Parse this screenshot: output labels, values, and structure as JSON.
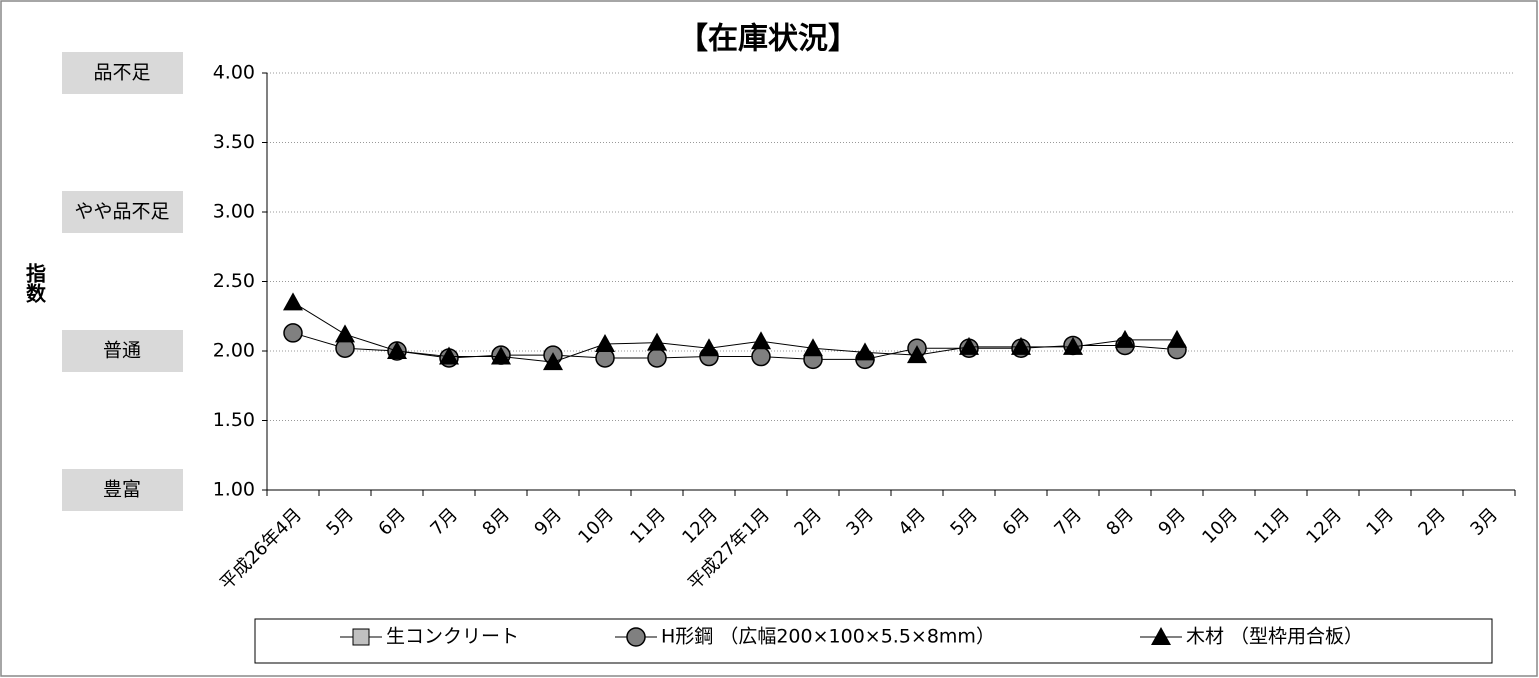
{
  "chart_data": {
    "type": "line",
    "title": "【在庫状況】",
    "y_label": "指数",
    "categories": [
      "平成26年4月",
      "5月",
      "6月",
      "7月",
      "8月",
      "9月",
      "10月",
      "11月",
      "12月",
      "平成27年1月",
      "2月",
      "3月",
      "4月",
      "5月",
      "6月",
      "7月",
      "8月",
      "9月",
      "10月",
      "11月",
      "12月",
      "1月",
      "2月",
      "3月"
    ],
    "series": [
      {
        "name": "生コンクリート",
        "color": "#c0c0c0",
        "marker": "square",
        "values": [
          null,
          null,
          null,
          null,
          null,
          null,
          null,
          null,
          null,
          null,
          null,
          null,
          null,
          null,
          null,
          null,
          null,
          null,
          null,
          null,
          null,
          null,
          null,
          null
        ]
      },
      {
        "name": "H形鋼 （広幅200×100×5.5×8mm）",
        "color": "#808080",
        "marker": "circle",
        "values": [
          2.13,
          2.02,
          2.0,
          1.95,
          1.97,
          1.97,
          1.95,
          1.95,
          1.96,
          1.96,
          1.94,
          1.94,
          2.02,
          2.02,
          2.02,
          2.04,
          2.04,
          2.01,
          null,
          null,
          null,
          null,
          null,
          null
        ]
      },
      {
        "name": "木材 （型枠用合板）",
        "color": "#000000",
        "marker": "triangle",
        "values": [
          2.35,
          2.12,
          2.0,
          1.96,
          1.96,
          1.92,
          2.05,
          2.06,
          2.02,
          2.07,
          2.02,
          1.99,
          1.97,
          2.03,
          2.03,
          2.03,
          2.08,
          2.08,
          null,
          null,
          null,
          null,
          null,
          null
        ]
      }
    ],
    "ylim": [
      1.0,
      4.0
    ],
    "yticks": [
      {
        "value": 1.0,
        "label": "1.00"
      },
      {
        "value": 1.5,
        "label": "1.50"
      },
      {
        "value": 2.0,
        "label": "2.00"
      },
      {
        "value": 2.5,
        "label": "2.50"
      },
      {
        "value": 3.0,
        "label": "3.00"
      },
      {
        "value": 3.5,
        "label": "3.50"
      },
      {
        "value": 4.0,
        "label": "4.00"
      }
    ],
    "level_labels": [
      {
        "value": 4.0,
        "label": "品不足"
      },
      {
        "value": 3.0,
        "label": "やや品不足"
      },
      {
        "value": 2.0,
        "label": "普通"
      },
      {
        "value": 1.0,
        "label": "豊富"
      }
    ],
    "grid": true,
    "legend": "bottom"
  }
}
